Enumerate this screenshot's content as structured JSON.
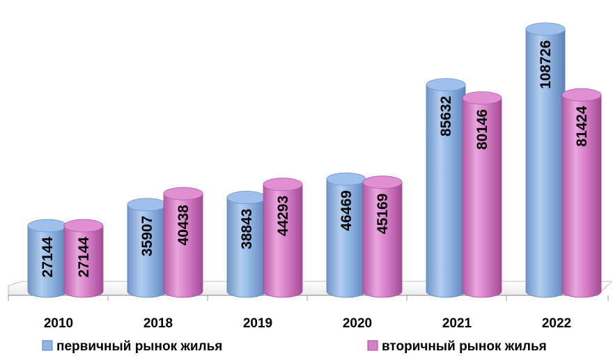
{
  "chart_data": {
    "type": "bar",
    "style": "3d-cylinder",
    "categories": [
      "2010",
      "2018",
      "2019",
      "2020",
      "2021",
      "2022"
    ],
    "series": [
      {
        "name": "первичный рынок жилья",
        "color": "#8EB4E3",
        "values": [
          27144,
          35907,
          38843,
          46469,
          85632,
          108726
        ]
      },
      {
        "name": "вторичный рынок жилья",
        "color": "#D77FC8",
        "values": [
          27144,
          40438,
          44293,
          45169,
          80146,
          81424
        ]
      }
    ],
    "title": "",
    "xlabel": "",
    "ylabel": "",
    "ylim": [
      0,
      115000
    ],
    "grid": false,
    "legend_position": "bottom",
    "data_labels": true
  }
}
